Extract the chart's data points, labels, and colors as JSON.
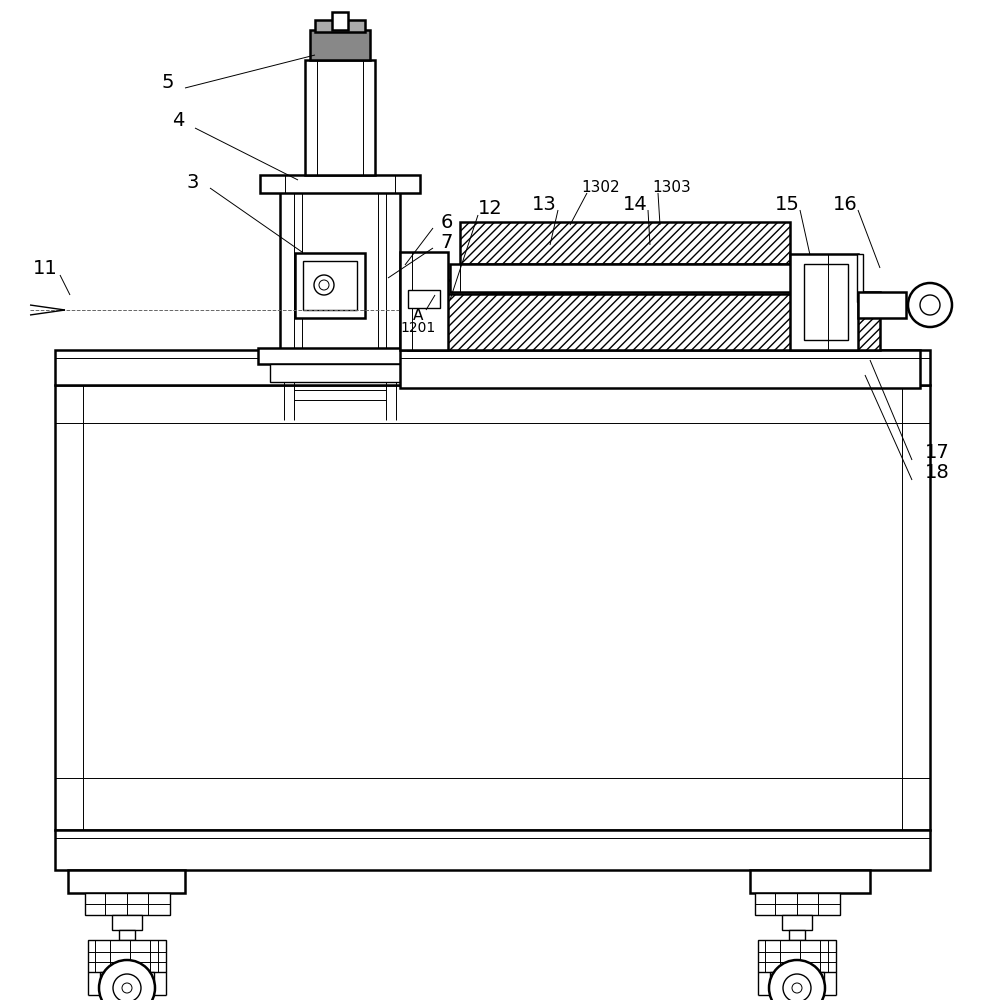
{
  "bg_color": "#ffffff",
  "lc": "#000000",
  "figsize": [
    9.83,
    10.0
  ],
  "dpi": 100
}
